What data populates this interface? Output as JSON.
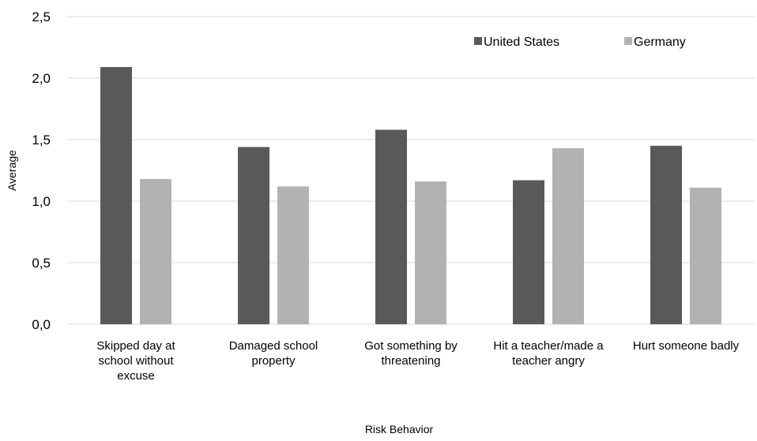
{
  "chart_data": {
    "type": "bar",
    "categories": [
      [
        "Skipped day at",
        "school without",
        "excuse"
      ],
      [
        "Damaged school",
        "property"
      ],
      [
        "Got something by",
        "threatening"
      ],
      [
        "Hit a teacher/made a",
        "teacher angry"
      ],
      [
        "Hurt someone badly"
      ]
    ],
    "series": [
      {
        "name": "United States",
        "color": "#595959",
        "values": [
          2.09,
          1.44,
          1.58,
          1.17,
          1.45
        ]
      },
      {
        "name": "Germany",
        "color": "#b2b2b2",
        "values": [
          1.18,
          1.12,
          1.16,
          1.43,
          1.11
        ]
      }
    ],
    "yticks": [
      "0,0",
      "0,5",
      "1,0",
      "1,5",
      "2,0",
      "2,5"
    ],
    "ylim": [
      0,
      2.5
    ],
    "xlabel": "Risk Behavior",
    "ylabel": "Average",
    "grid": true,
    "legend": "top-right"
  }
}
